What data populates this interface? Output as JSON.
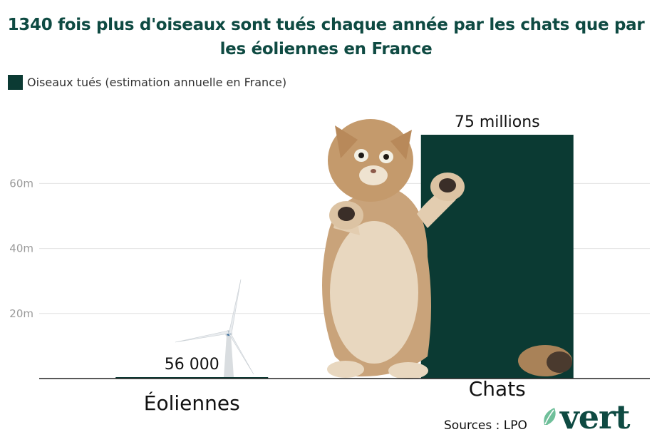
{
  "colors": {
    "bar": "#0b3a33",
    "title": "#0e4a42",
    "grid": "#e2e2e2",
    "axis": "#222222"
  },
  "chart_data": {
    "type": "bar",
    "title": "1340 fois plus d'oiseaux sont tués chaque année par les chats que par les éoliennes en France",
    "categories": [
      "Éoliennes",
      "Chats"
    ],
    "series": [
      {
        "name": "Oiseaux tués (estimation annuelle en France)",
        "values": [
          56000,
          75000000
        ]
      }
    ],
    "data_labels": [
      "56 000",
      "75 millions"
    ],
    "yticks": [
      {
        "value": 20000000,
        "label": "20m"
      },
      {
        "value": 40000000,
        "label": "40m"
      },
      {
        "value": 60000000,
        "label": "60m"
      }
    ],
    "ylim": [
      0,
      75000000
    ],
    "xlabel": "",
    "ylabel": "",
    "grid": true,
    "legend": "top-left"
  },
  "illustrations": [
    "wind-turbine",
    "cat"
  ],
  "footer": {
    "source": "Sources : LPO",
    "logo": "vert"
  }
}
